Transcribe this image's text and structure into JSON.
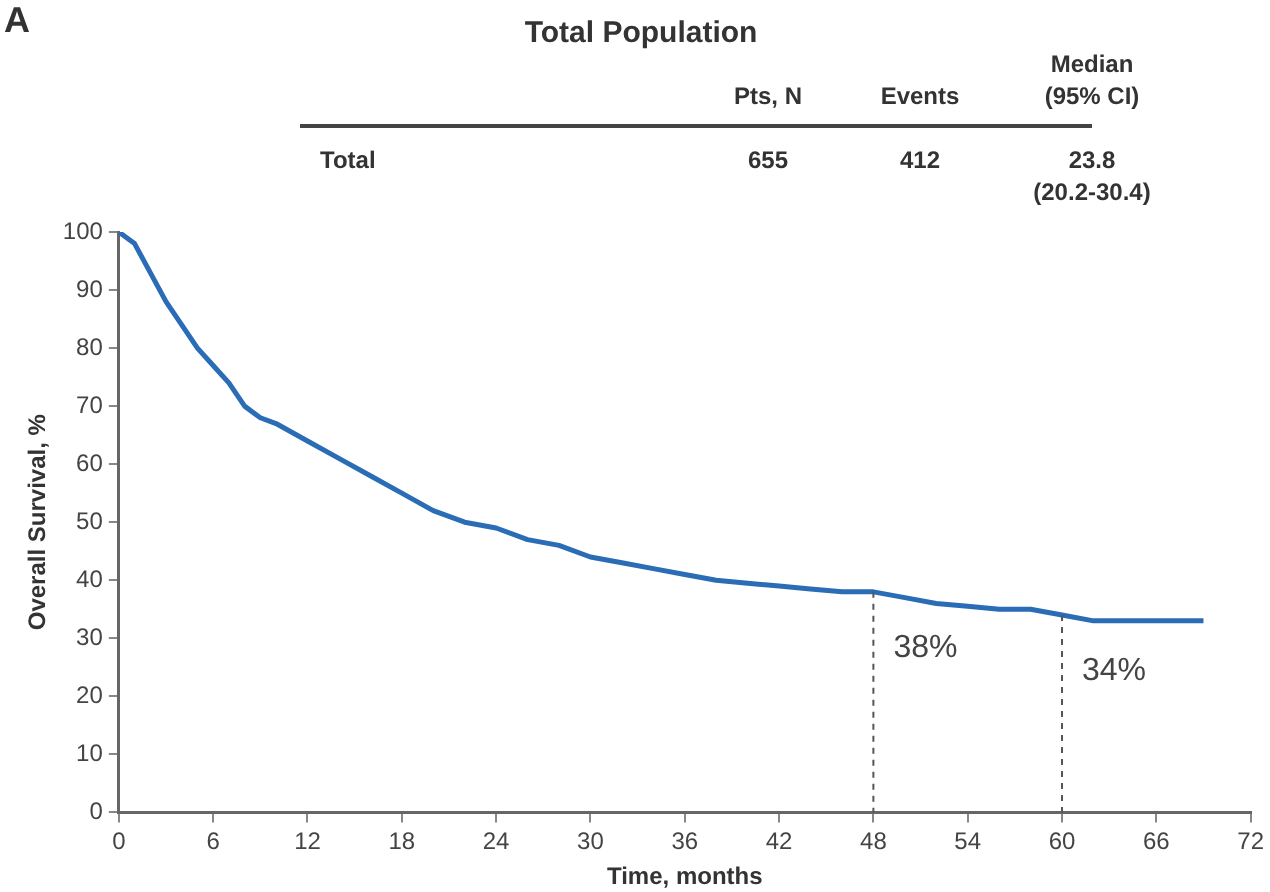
{
  "chart_data": {
    "type": "line",
    "title": "Total Population",
    "xlabel": "Time, months",
    "ylabel": "Overall Survival, %",
    "annotations": [
      "A",
      "Pts, N",
      "Events",
      "Median\n(95% CI)",
      "Total",
      "655",
      "412",
      "23.8\n(20.2-30.4)",
      {
        "text": "38%",
        "x": 48,
        "y": 38
      },
      {
        "text": "34%",
        "x": 60,
        "y": 34
      }
    ],
    "x": [
      0,
      1,
      2,
      3,
      4,
      5,
      6,
      7,
      8,
      9,
      10,
      12,
      14,
      16,
      18,
      20,
      22,
      24,
      26,
      28,
      30,
      32,
      34,
      36,
      38,
      40,
      42,
      44,
      46,
      48,
      50,
      52,
      54,
      56,
      58,
      60,
      62,
      64,
      66,
      69
    ],
    "series": [
      {
        "color": "#2a6cb5",
        "values": [
          100,
          98,
          93,
          88,
          84,
          80,
          77,
          74,
          70,
          68,
          67,
          64,
          61,
          58,
          55,
          52,
          50,
          49,
          47,
          46,
          44,
          43,
          42,
          41,
          40,
          39.5,
          39,
          38.5,
          38,
          38,
          37,
          36,
          35.5,
          35,
          35,
          34,
          33,
          33,
          33,
          33
        ]
      }
    ],
    "xlim": [
      0,
      72
    ],
    "xticks": [
      0,
      6,
      12,
      18,
      24,
      30,
      36,
      42,
      48,
      54,
      60,
      66,
      72
    ],
    "ylim": [
      0,
      100
    ],
    "yticks": [
      0,
      10,
      20,
      30,
      40,
      50,
      60,
      70,
      80,
      90,
      100
    ],
    "ref_lines": [
      {
        "axis": "x",
        "value": 48,
        "color": "#555555",
        "line_style": "dashed"
      },
      {
        "axis": "x",
        "value": 60,
        "color": "#555555",
        "line_style": "dashed"
      }
    ],
    "grid": false,
    "legend": false,
    "marker": "none",
    "line_style": "solid"
  }
}
